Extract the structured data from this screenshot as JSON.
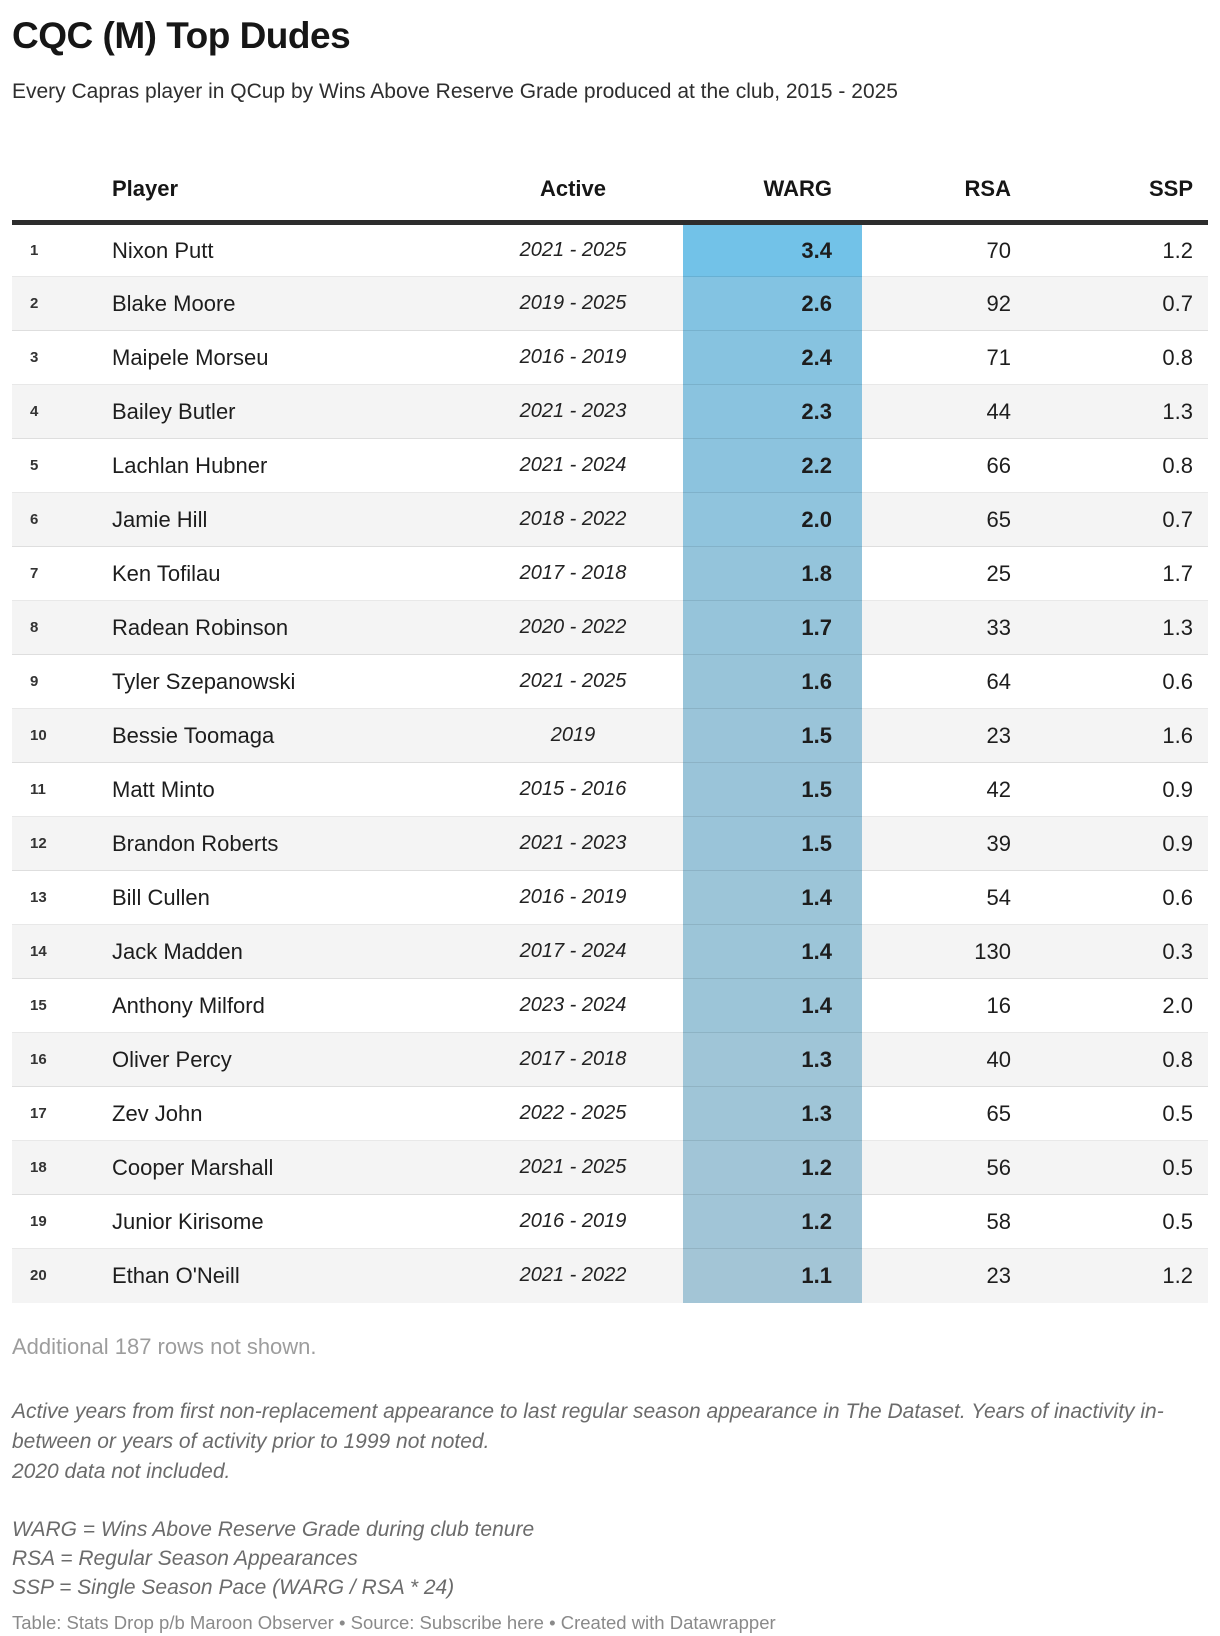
{
  "header": {
    "title": "CQC (M) Top Dudes",
    "subtitle": "Every Capras player in QCup by Wins Above Reserve Grade produced at the club, 2015 - 2025"
  },
  "chart_data": {
    "type": "table",
    "title": "CQC (M) Top Dudes",
    "subtitle": "Every Capras player in QCup by Wins Above Reserve Grade produced at the club, 2015 - 2025",
    "columns": [
      {
        "key": "rank",
        "label": ""
      },
      {
        "key": "player",
        "label": "Player"
      },
      {
        "key": "active",
        "label": "Active"
      },
      {
        "key": "warg",
        "label": "WARG"
      },
      {
        "key": "rsa",
        "label": "RSA"
      },
      {
        "key": "ssp",
        "label": "SSP"
      }
    ],
    "highlight_column": "warg",
    "rows": [
      {
        "rank": "1",
        "player": "Nixon Putt",
        "active": "2021 - 2025",
        "warg": "3.4",
        "rsa": "70",
        "ssp": "1.2",
        "warg_color": "#72c2e8"
      },
      {
        "rank": "2",
        "player": "Blake Moore",
        "active": "2019 - 2025",
        "warg": "2.6",
        "rsa": "92",
        "ssp": "0.7",
        "warg_color": "#83c3e2"
      },
      {
        "rank": "3",
        "player": "Maipele Morseu",
        "active": "2016 - 2019",
        "warg": "2.4",
        "rsa": "71",
        "ssp": "0.8",
        "warg_color": "#87c3e0"
      },
      {
        "rank": "4",
        "player": "Bailey Butler",
        "active": "2021 - 2023",
        "warg": "2.3",
        "rsa": "44",
        "ssp": "1.3",
        "warg_color": "#8ac3df"
      },
      {
        "rank": "5",
        "player": "Lachlan Hubner",
        "active": "2021 - 2024",
        "warg": "2.2",
        "rsa": "66",
        "ssp": "0.8",
        "warg_color": "#8cc3de"
      },
      {
        "rank": "6",
        "player": "Jamie Hill",
        "active": "2018 - 2022",
        "warg": "2.0",
        "rsa": "65",
        "ssp": "0.7",
        "warg_color": "#90c4dd"
      },
      {
        "rank": "7",
        "player": "Ken Tofilau",
        "active": "2017 - 2018",
        "warg": "1.8",
        "rsa": "25",
        "ssp": "1.7",
        "warg_color": "#94c4db"
      },
      {
        "rank": "8",
        "player": "Radean Robinson",
        "active": "2020 - 2022",
        "warg": "1.7",
        "rsa": "33",
        "ssp": "1.3",
        "warg_color": "#96c4da"
      },
      {
        "rank": "9",
        "player": "Tyler Szepanowski",
        "active": "2021 - 2025",
        "warg": "1.6",
        "rsa": "64",
        "ssp": "0.6",
        "warg_color": "#98c4d9"
      },
      {
        "rank": "10",
        "player": "Bessie Toomaga",
        "active": "2019",
        "warg": "1.5",
        "rsa": "23",
        "ssp": "1.6",
        "warg_color": "#9ac4d9"
      },
      {
        "rank": "11",
        "player": "Matt Minto",
        "active": "2015 - 2016",
        "warg": "1.5",
        "rsa": "42",
        "ssp": "0.9",
        "warg_color": "#9ac4d9"
      },
      {
        "rank": "12",
        "player": "Brandon Roberts",
        "active": "2021 - 2023",
        "warg": "1.5",
        "rsa": "39",
        "ssp": "0.9",
        "warg_color": "#9ac4d9"
      },
      {
        "rank": "13",
        "player": "Bill Cullen",
        "active": "2016 - 2019",
        "warg": "1.4",
        "rsa": "54",
        "ssp": "0.6",
        "warg_color": "#9cc5d8"
      },
      {
        "rank": "14",
        "player": "Jack Madden",
        "active": "2017 - 2024",
        "warg": "1.4",
        "rsa": "130",
        "ssp": "0.3",
        "warg_color": "#9cc5d8"
      },
      {
        "rank": "15",
        "player": "Anthony Milford",
        "active": "2023 - 2024",
        "warg": "1.4",
        "rsa": "16",
        "ssp": "2.0",
        "warg_color": "#9cc5d8"
      },
      {
        "rank": "16",
        "player": "Oliver Percy",
        "active": "2017 - 2018",
        "warg": "1.3",
        "rsa": "40",
        "ssp": "0.8",
        "warg_color": "#9fc5d7"
      },
      {
        "rank": "17",
        "player": "Zev John",
        "active": "2022 - 2025",
        "warg": "1.3",
        "rsa": "65",
        "ssp": "0.5",
        "warg_color": "#9fc5d7"
      },
      {
        "rank": "18",
        "player": "Cooper Marshall",
        "active": "2021 - 2025",
        "warg": "1.2",
        "rsa": "56",
        "ssp": "0.5",
        "warg_color": "#a1c5d7"
      },
      {
        "rank": "19",
        "player": "Junior Kirisome",
        "active": "2016 - 2019",
        "warg": "1.2",
        "rsa": "58",
        "ssp": "0.5",
        "warg_color": "#a1c5d7"
      },
      {
        "rank": "20",
        "player": "Ethan O'Neill",
        "active": "2021 - 2022",
        "warg": "1.1",
        "rsa": "23",
        "ssp": "1.2",
        "warg_color": "#a3c5d6"
      }
    ]
  },
  "colors": {
    "warg_scale_high": "#72c2e8",
    "warg_scale_low": "#a3c5d6",
    "row_stripe": "#f4f4f4",
    "header_rule": "#2d2d2d"
  },
  "footer": {
    "additional": "Additional 187 rows not shown.",
    "notes": [
      "Active years from first non-replacement appearance to last regular season appearance in The Dataset. Years of inactivity in-between or years of activity prior to 1999 not noted.",
      "2020 data not included."
    ],
    "definitions": [
      "WARG = Wins Above Reserve Grade during club tenure",
      "RSA = Regular Season Appearances",
      "SSP = Single Season Pace (WARG / RSA * 24)"
    ],
    "credit": {
      "table_label": "Table: Stats Drop p/b Maroon Observer",
      "separator1": " • ",
      "source_prefix": "Source: ",
      "source_link": "Subscribe here",
      "separator2": " • ",
      "created": "Created with Datawrapper"
    }
  }
}
